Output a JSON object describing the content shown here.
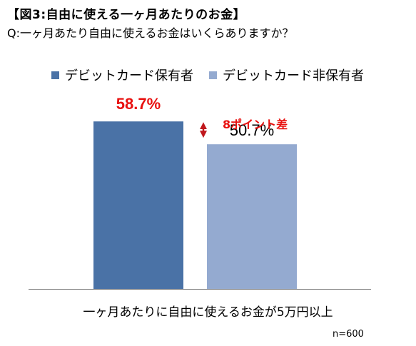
{
  "chart_data": {
    "type": "bar",
    "title": "【図3:自由に使える一ヶ月あたりのお金】",
    "subtitle": "Q:一ヶ月あたり自由に使えるお金はいくらありますか？",
    "categories": [
      "一ヶ月あたりに自由に使えるお金が5万円以上"
    ],
    "series": [
      {
        "name": "デビットカード保有者",
        "values": [
          58.7
        ],
        "label": "58.7%",
        "color": "#4A72A6",
        "label_color": "#E8100F"
      },
      {
        "name": "デビットカード非保有者",
        "values": [
          50.7
        ],
        "label": "50.7%",
        "color": "#94AAD0",
        "label_color": "#000000"
      }
    ],
    "annotation": {
      "text": "8ポイント差",
      "color": "#E8100F",
      "arrow_color": "#C0171C"
    },
    "sample_note": "n=600",
    "ylim": [
      0,
      60
    ],
    "legend": "top",
    "grid": false
  }
}
